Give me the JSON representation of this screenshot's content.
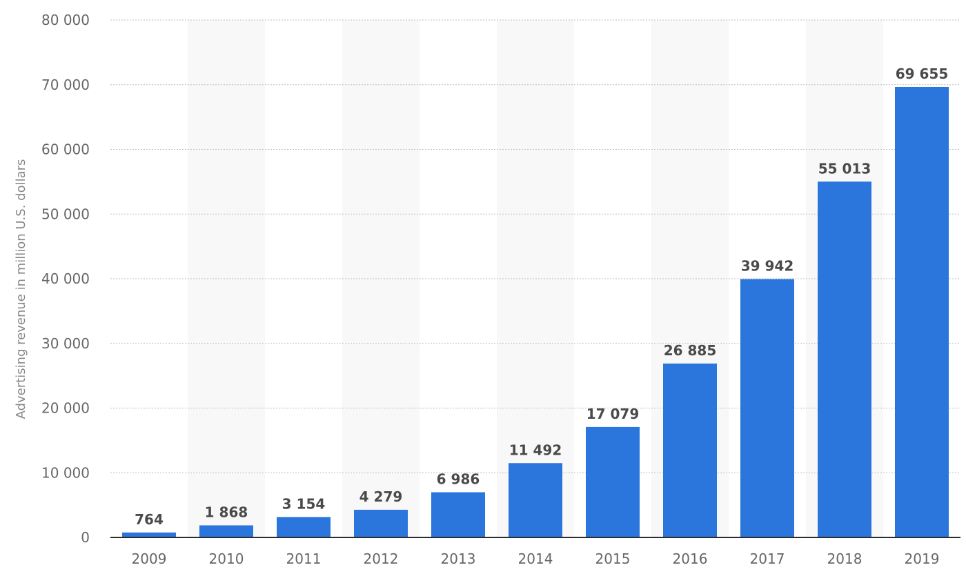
{
  "chart_data": {
    "type": "bar",
    "categories": [
      "2009",
      "2010",
      "2011",
      "2012",
      "2013",
      "2014",
      "2015",
      "2016",
      "2017",
      "2018",
      "2019"
    ],
    "values": [
      764,
      1868,
      3154,
      4279,
      6986,
      11492,
      17079,
      26885,
      39942,
      55013,
      69655
    ],
    "value_labels": [
      "764",
      "1 868",
      "3 154",
      "4 279",
      "6 986",
      "11 492",
      "17 079",
      "26 885",
      "39 942",
      "55 013",
      "69 655"
    ],
    "title": "",
    "xlabel": "",
    "ylabel": "Advertising revenue in million U.S. dollars",
    "ylim": [
      0,
      80000
    ],
    "yticks": [
      0,
      10000,
      20000,
      30000,
      40000,
      50000,
      60000,
      70000,
      80000
    ],
    "ytick_labels": [
      "0",
      "10 000",
      "20 000",
      "30 000",
      "40 000",
      "50 000",
      "60 000",
      "70 000",
      "80 000"
    ],
    "grid": true,
    "legend": "none",
    "bar_color": "#2a76dd"
  }
}
